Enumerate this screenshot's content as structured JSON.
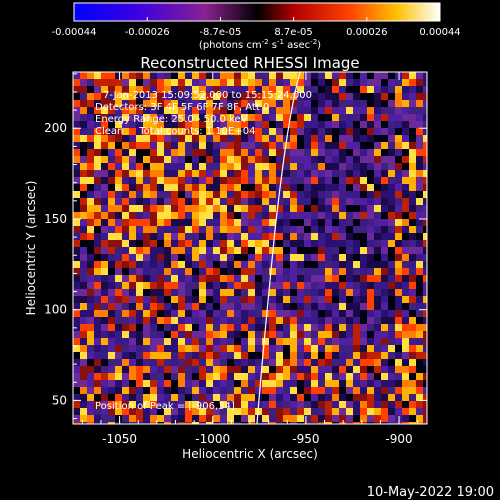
{
  "colorbar": {
    "tick_labels": [
      "-0.00044",
      "-0.00026",
      "-8.7e-05",
      "8.7e-05",
      "0.00026",
      "0.00044"
    ],
    "units": "(photons cm",
    "units_sup1": "-2",
    "units_mid1": " s",
    "units_sup2": "-1",
    "units_mid2": " asec",
    "units_sup3": "-2",
    "units_end": ")"
  },
  "image": {
    "title": "Reconstructed RHESSI Image",
    "info_lines": [
      "7-Jan-2013 15:09:52.000 to 15:15:24.000",
      "Detectors: 3F 4F 5F 6F 7F 8F, Att 0",
      "Energy Range: 25.0 - 50.0 keV",
      "Clean     Total counts: 1.10E+04"
    ],
    "peak_label": "Position of Peak = [-906,34]",
    "xlabel": "Heliocentric X (arcsec)",
    "ylabel": "Heliocentric Y (arcsec)",
    "x_ticks": [
      "-1050",
      "-1000",
      "-950",
      "-900"
    ],
    "x_tick_values": [
      -1050,
      -1000,
      -950,
      -900
    ],
    "y_ticks": [
      "50",
      "100",
      "150",
      "200"
    ],
    "y_tick_values": [
      50,
      100,
      150,
      200
    ],
    "xlim": [
      -1075,
      -885
    ],
    "ylim": [
      37,
      231
    ]
  },
  "timestamp": "10-May-2022 19:00"
}
